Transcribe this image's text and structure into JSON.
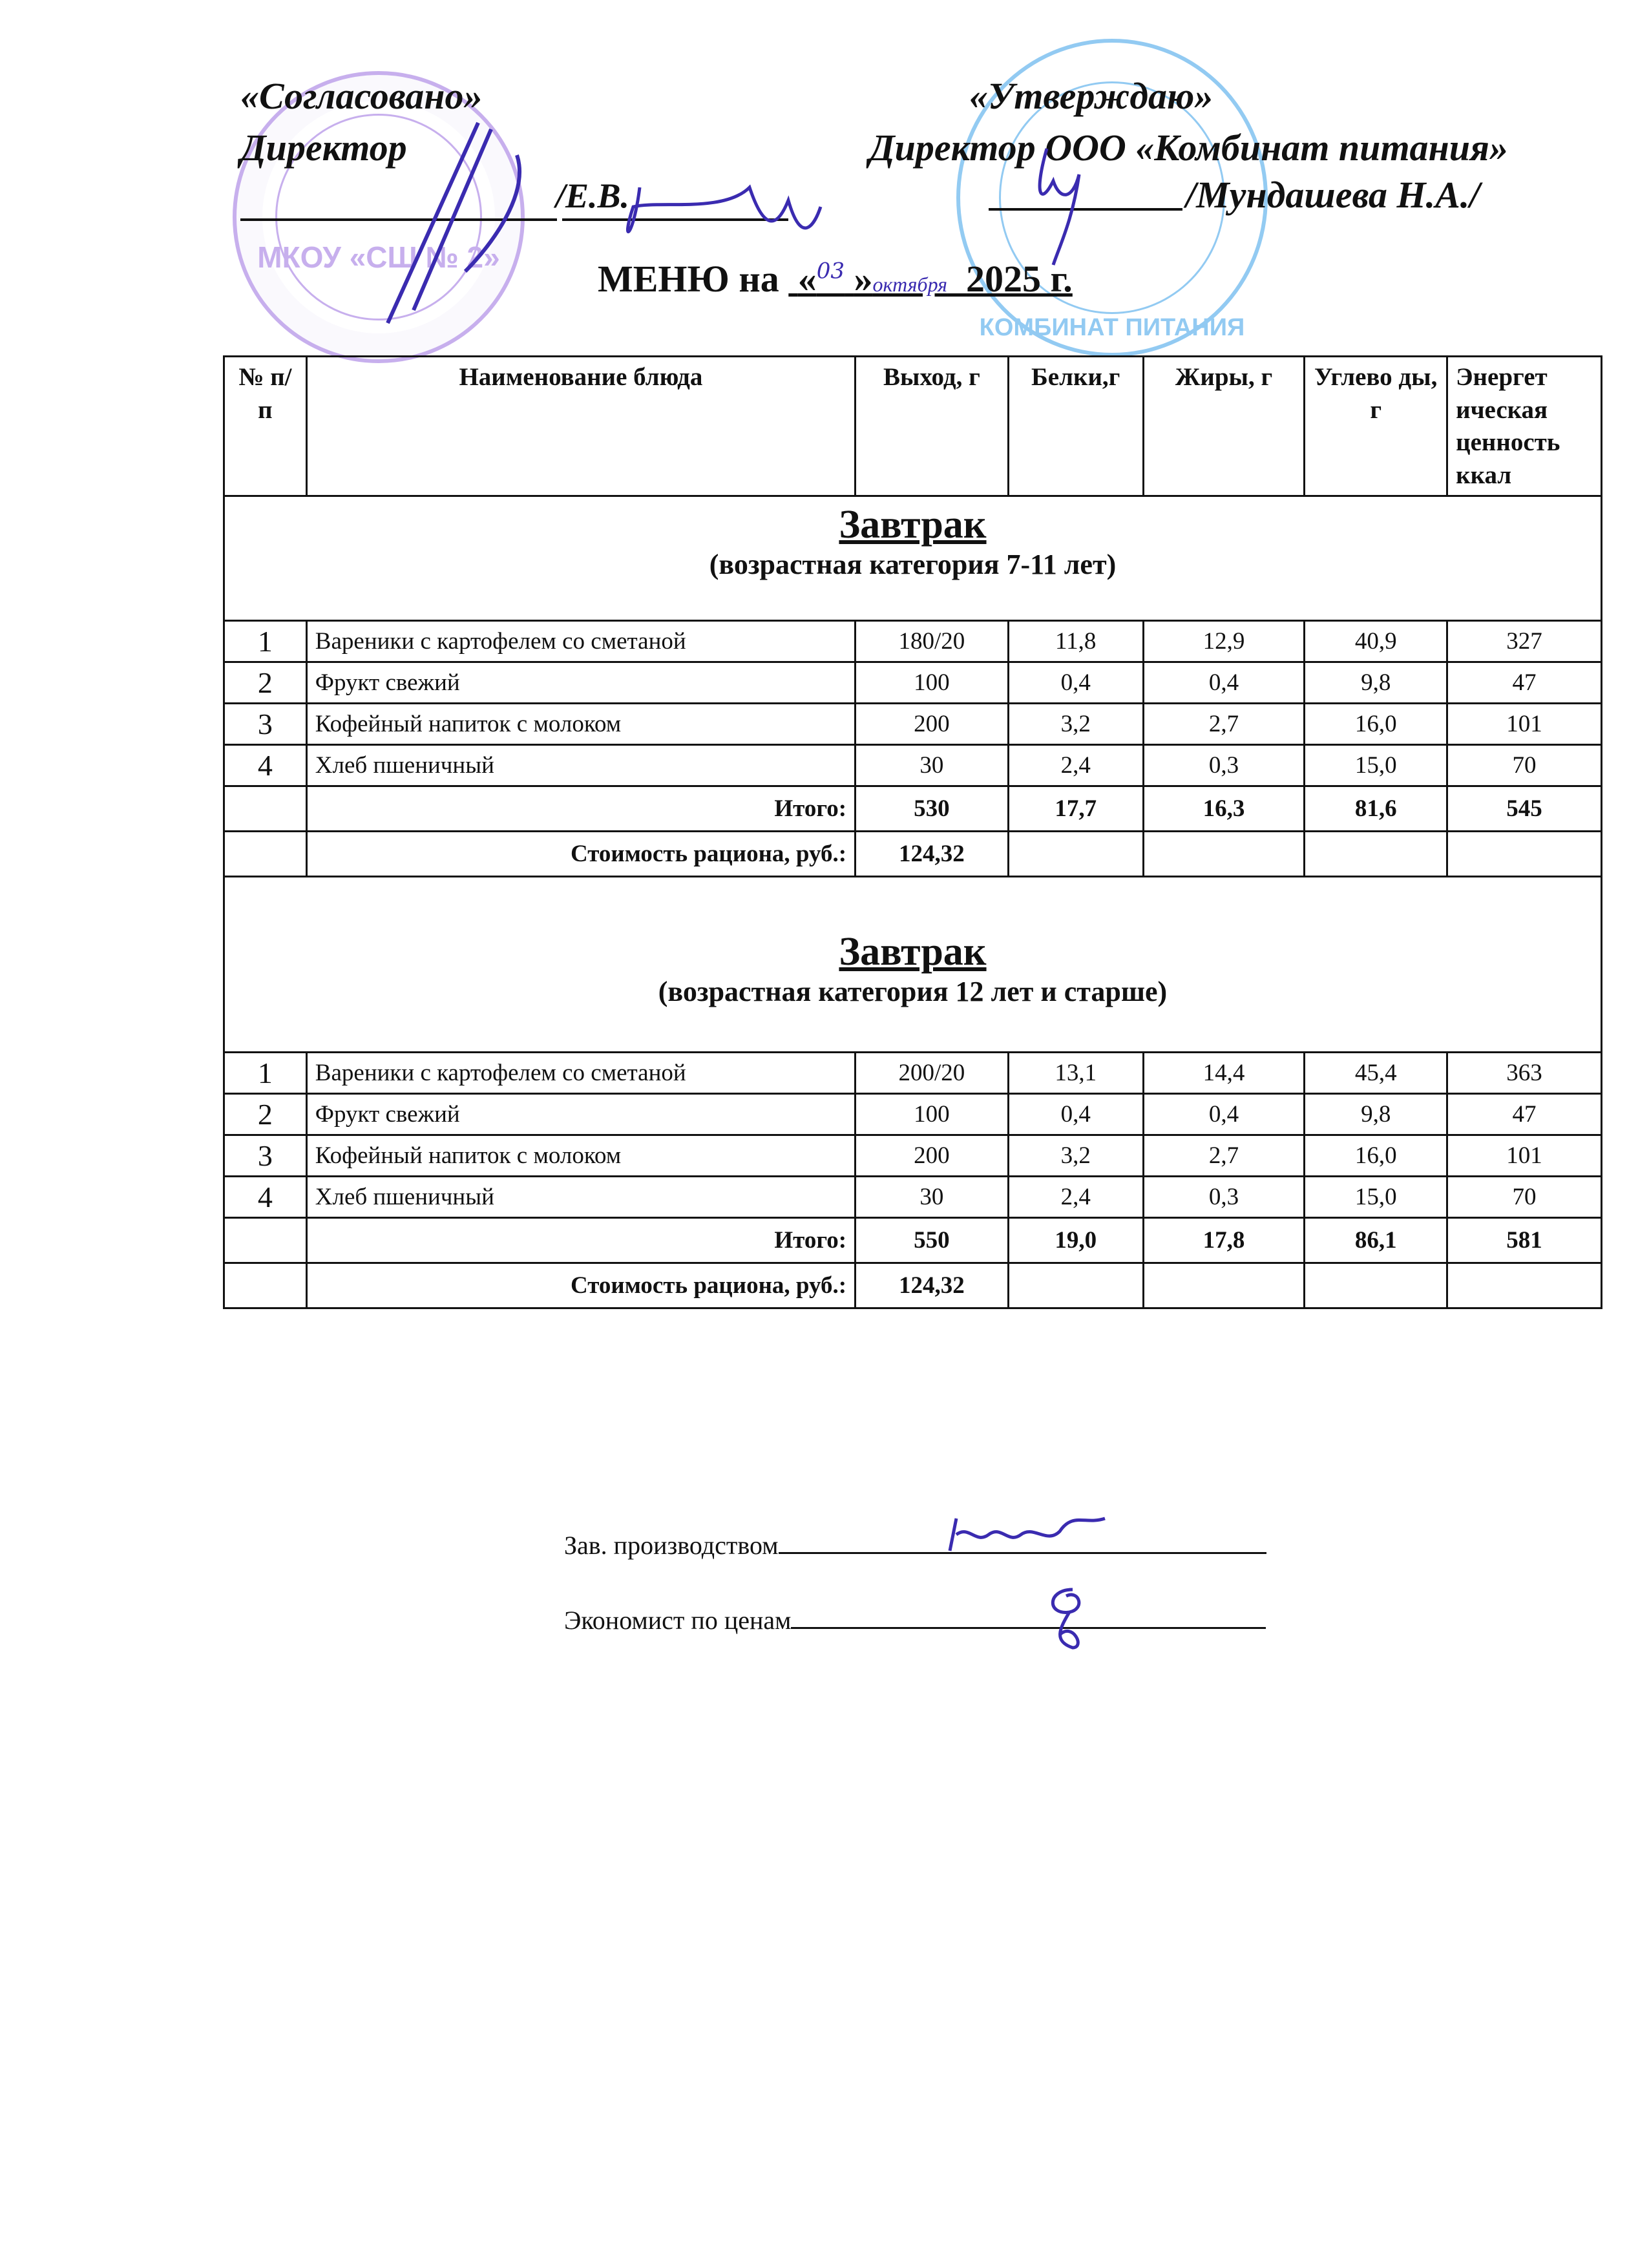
{
  "header": {
    "left_title": "«Согласовано»",
    "left_role": "Директор",
    "left_signature_name": "/Е.В.",
    "right_title": "«Утверждаю»",
    "right_role": "Директор ООО «Комбинат питания»",
    "right_signature_name": "/Мундашева Н.А./",
    "menu_prefix": "МЕНЮ на",
    "menu_date_open": "«",
    "menu_day_handwritten": "03",
    "menu_date_close": "»",
    "menu_month_handwritten": "октября",
    "menu_year": "2025 г.",
    "left_stamp_text": "МКОУ «СШ № 2»",
    "right_stamp_text": "КОМБИНАТ ПИТАНИЯ"
  },
  "table": {
    "columns": [
      "№ п/п",
      "Наименование блюда",
      "Выход, г",
      "Белки,г",
      "Жиры, г",
      "Углево ды, г",
      "Энергет ическая ценность ккал"
    ],
    "sections": [
      {
        "title": "Завтрак",
        "subtitle": "(возрастная категория 7-11 лет)",
        "rows": [
          [
            "1",
            "Вареники с картофелем со сметаной",
            "180/20",
            "11,8",
            "12,9",
            "40,9",
            "327"
          ],
          [
            "2",
            "Фрукт свежий",
            "100",
            "0,4",
            "0,4",
            "9,8",
            "47"
          ],
          [
            "3",
            "Кофейный напиток с молоком",
            "200",
            "3,2",
            "2,7",
            "16,0",
            "101"
          ],
          [
            "4",
            "Хлеб  пшеничный",
            "30",
            "2,4",
            "0,3",
            "15,0",
            "70"
          ]
        ],
        "total": {
          "label": "Итого:",
          "values": [
            "530",
            "17,7",
            "16,3",
            "81,6",
            "545"
          ]
        },
        "cost": {
          "label": "Стоимость рациона, руб.:",
          "value": "124,32"
        }
      },
      {
        "title": "Завтрак",
        "subtitle": "(возрастная категория 12 лет и старше)",
        "rows": [
          [
            "1",
            "Вареники с картофелем со сметаной",
            "200/20",
            "13,1",
            "14,4",
            "45,4",
            "363"
          ],
          [
            "2",
            "Фрукт свежий",
            "100",
            "0,4",
            "0,4",
            "9,8",
            "47"
          ],
          [
            "3",
            "Кофейный напиток с  молоком",
            "200",
            "3,2",
            "2,7",
            "16,0",
            "101"
          ],
          [
            "4",
            "Хлеб  пшеничный",
            "30",
            "2,4",
            "0,3",
            "15,0",
            "70"
          ]
        ],
        "total": {
          "label": "Итого:",
          "values": [
            "550",
            "19,0",
            "17,8",
            "86,1",
            "581"
          ]
        },
        "cost": {
          "label": "Стоимость рациона, руб.:",
          "value": "124,32"
        }
      }
    ]
  },
  "footer": {
    "production_label": "Зав. производством",
    "economist_label": "Экономист по ценам"
  },
  "colors": {
    "left_stamp": "#9b6fe0",
    "right_stamp": "#3aa0e8",
    "signature_ink": "#3a2bb0"
  }
}
